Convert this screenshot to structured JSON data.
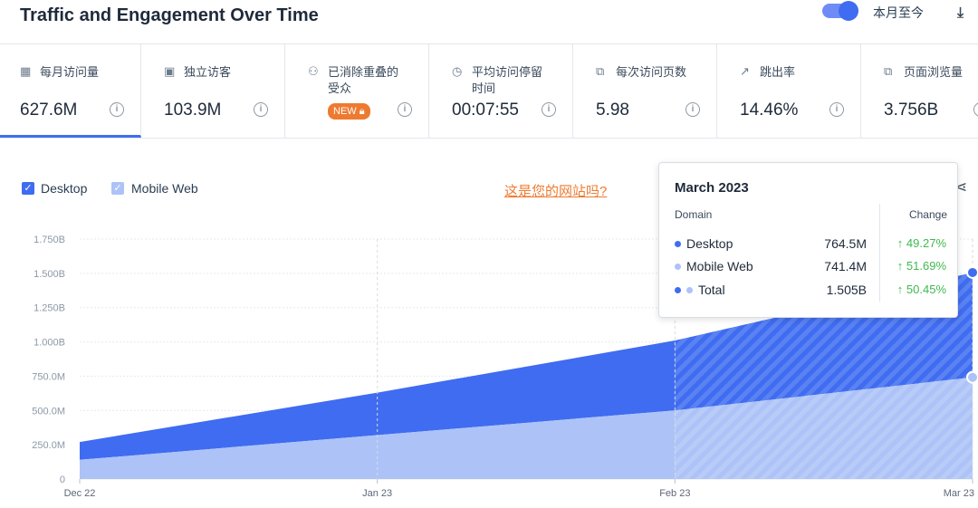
{
  "header": {
    "title": "Traffic and Engagement Over Time",
    "toggle_label": "本月至今",
    "export_icon": "export-icon"
  },
  "metrics": [
    {
      "label": "每月访问量",
      "value": "627.6M",
      "icon": "calendar-icon",
      "active": true
    },
    {
      "label": "独立访客",
      "value": "103.9M",
      "icon": "person-icon"
    },
    {
      "label": "已消除重叠的受众",
      "badge": "NEW",
      "icon": "group-icon"
    },
    {
      "label": "平均访问停留时间",
      "value": "00:07:55",
      "icon": "timer-icon"
    },
    {
      "label": "每次访问页数",
      "value": "5.98",
      "icon": "pages-icon"
    },
    {
      "label": "跳出率",
      "value": "14.46%",
      "icon": "bounce-icon"
    },
    {
      "label": "页面浏览量",
      "value": "3.756B",
      "icon": "pageviews-icon"
    }
  ],
  "legend": {
    "desktop": "Desktop",
    "mobile": "Mobile Web"
  },
  "site_link": "这是您的网站吗?",
  "tooltip": {
    "title": "March 2023",
    "domain_header": "Domain",
    "change_header": "Change",
    "rows": [
      {
        "name": "Desktop",
        "value": "764.5M",
        "change": "49.27%"
      },
      {
        "name": "Mobile Web",
        "value": "741.4M",
        "change": "51.69%"
      },
      {
        "name": "Total",
        "value": "1.505B",
        "change": "50.45%"
      }
    ]
  },
  "colors": {
    "desktop": "#3f6cf0",
    "mobile": "#adc3f7",
    "accent": "#ee7a30",
    "positive": "#3fb950"
  },
  "chart_data": {
    "type": "area",
    "stacked": true,
    "categories": [
      "Dec 22",
      "Jan 23",
      "Feb 23",
      "Mar 23"
    ],
    "series": [
      {
        "name": "Mobile Web",
        "values": [
          140,
          320,
          500,
          741.4
        ]
      },
      {
        "name": "Desktop",
        "values": [
          130,
          310,
          510,
          764.5
        ]
      }
    ],
    "y_ticks": [
      0,
      250,
      500,
      750,
      1000,
      1250,
      1500,
      1750
    ],
    "y_tick_labels": [
      "0",
      "250.0M",
      "500.0M",
      "750.0M",
      "1.000B",
      "1.250B",
      "1.500B",
      "1.750B"
    ],
    "ylim": [
      0,
      1750
    ],
    "grid": true,
    "projected_from_index": 2
  }
}
